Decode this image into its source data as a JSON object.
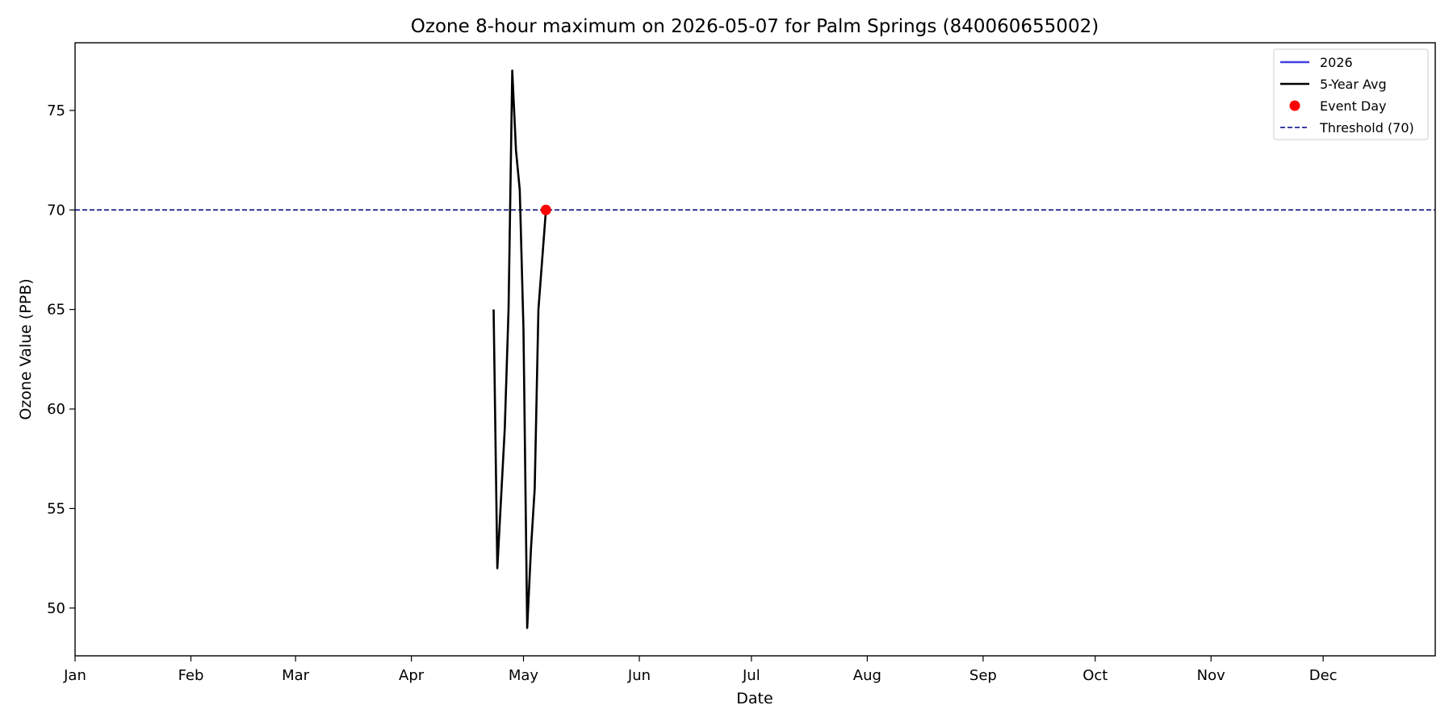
{
  "chart_data": {
    "type": "line",
    "title": "Ozone 8-hour maximum on 2026-05-07 for Palm Springs (840060655002)",
    "xlabel": "Date",
    "ylabel": "Ozone Value (PPB)",
    "x_type": "date",
    "xlim": [
      "2026-01-01",
      "2026-12-31"
    ],
    "ylim": [
      47.6,
      78.4
    ],
    "yticks": [
      50,
      55,
      60,
      65,
      70,
      75
    ],
    "xticks": [
      {
        "date": "2026-01-01",
        "label": "Jan"
      },
      {
        "date": "2026-02-01",
        "label": "Feb"
      },
      {
        "date": "2026-03-01",
        "label": "Mar"
      },
      {
        "date": "2026-04-01",
        "label": "Apr"
      },
      {
        "date": "2026-05-01",
        "label": "May"
      },
      {
        "date": "2026-06-01",
        "label": "Jun"
      },
      {
        "date": "2026-07-01",
        "label": "Jul"
      },
      {
        "date": "2026-08-01",
        "label": "Aug"
      },
      {
        "date": "2026-09-01",
        "label": "Sep"
      },
      {
        "date": "2026-10-01",
        "label": "Oct"
      },
      {
        "date": "2026-11-01",
        "label": "Nov"
      },
      {
        "date": "2026-12-01",
        "label": "Dec"
      }
    ],
    "grid": false,
    "legend_position": "top-right",
    "series": [
      {
        "name": "2026",
        "color": "#4040e0",
        "style": "solid",
        "points": []
      },
      {
        "name": "5-Year Avg",
        "color": "#000000",
        "style": "solid",
        "points": [
          {
            "x": "2026-04-23",
            "y": 65
          },
          {
            "x": "2026-04-24",
            "y": 52
          },
          {
            "x": "2026-04-26",
            "y": 59
          },
          {
            "x": "2026-04-27",
            "y": 65
          },
          {
            "x": "2026-04-28",
            "y": 77
          },
          {
            "x": "2026-04-29",
            "y": 73
          },
          {
            "x": "2026-04-30",
            "y": 71
          },
          {
            "x": "2026-05-01",
            "y": 64
          },
          {
            "x": "2026-05-02",
            "y": 49
          },
          {
            "x": "2026-05-03",
            "y": 53
          },
          {
            "x": "2026-05-04",
            "y": 56
          },
          {
            "x": "2026-05-05",
            "y": 65
          },
          {
            "x": "2026-05-07",
            "y": 70
          }
        ]
      }
    ],
    "event_day": {
      "name": "Event Day",
      "x": "2026-05-07",
      "y": 70,
      "color": "#ff0000"
    },
    "threshold": {
      "name": "Threshold (70)",
      "y": 70,
      "color": "#000080",
      "style": "dashed"
    }
  }
}
